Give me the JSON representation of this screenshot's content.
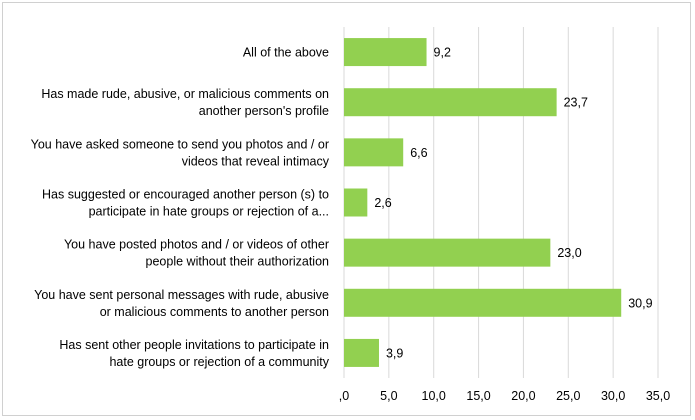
{
  "chart_data": {
    "type": "bar",
    "orientation": "horizontal",
    "title": "",
    "xlabel": "",
    "ylabel": "",
    "xlim": [
      0,
      35
    ],
    "ticks": [
      ",0",
      "5,0",
      "10,0",
      "15,0",
      "20,0",
      "25,0",
      "30,0",
      "35,0"
    ],
    "tick_values": [
      0,
      5,
      10,
      15,
      20,
      25,
      30,
      35
    ],
    "grid": true,
    "legend": "none",
    "bar_color": "#92d050",
    "categories": [
      {
        "lines": [
          "All of the above"
        ]
      },
      {
        "lines": [
          "Has made rude, abusive, or malicious comments on",
          "another person's profile"
        ]
      },
      {
        "lines": [
          "You have asked someone to send you photos and / or",
          "videos that reveal intimacy"
        ]
      },
      {
        "lines": [
          "Has suggested or encouraged another person (s) to",
          "participate in hate groups or rejection of a..."
        ]
      },
      {
        "lines": [
          "You have posted photos and / or videos of other",
          "people without their authorization"
        ]
      },
      {
        "lines": [
          "You have sent personal messages with rude, abusive",
          "or malicious comments to another person"
        ]
      },
      {
        "lines": [
          "Has sent other people invitations to participate in",
          "hate groups or rejection of a community"
        ]
      }
    ],
    "values": [
      9.2,
      23.7,
      6.6,
      2.6,
      23.0,
      30.9,
      3.9
    ],
    "value_labels": [
      "9,2",
      "23,7",
      "6,6",
      "2,6",
      "23,0",
      "30,9",
      "3,9"
    ]
  }
}
